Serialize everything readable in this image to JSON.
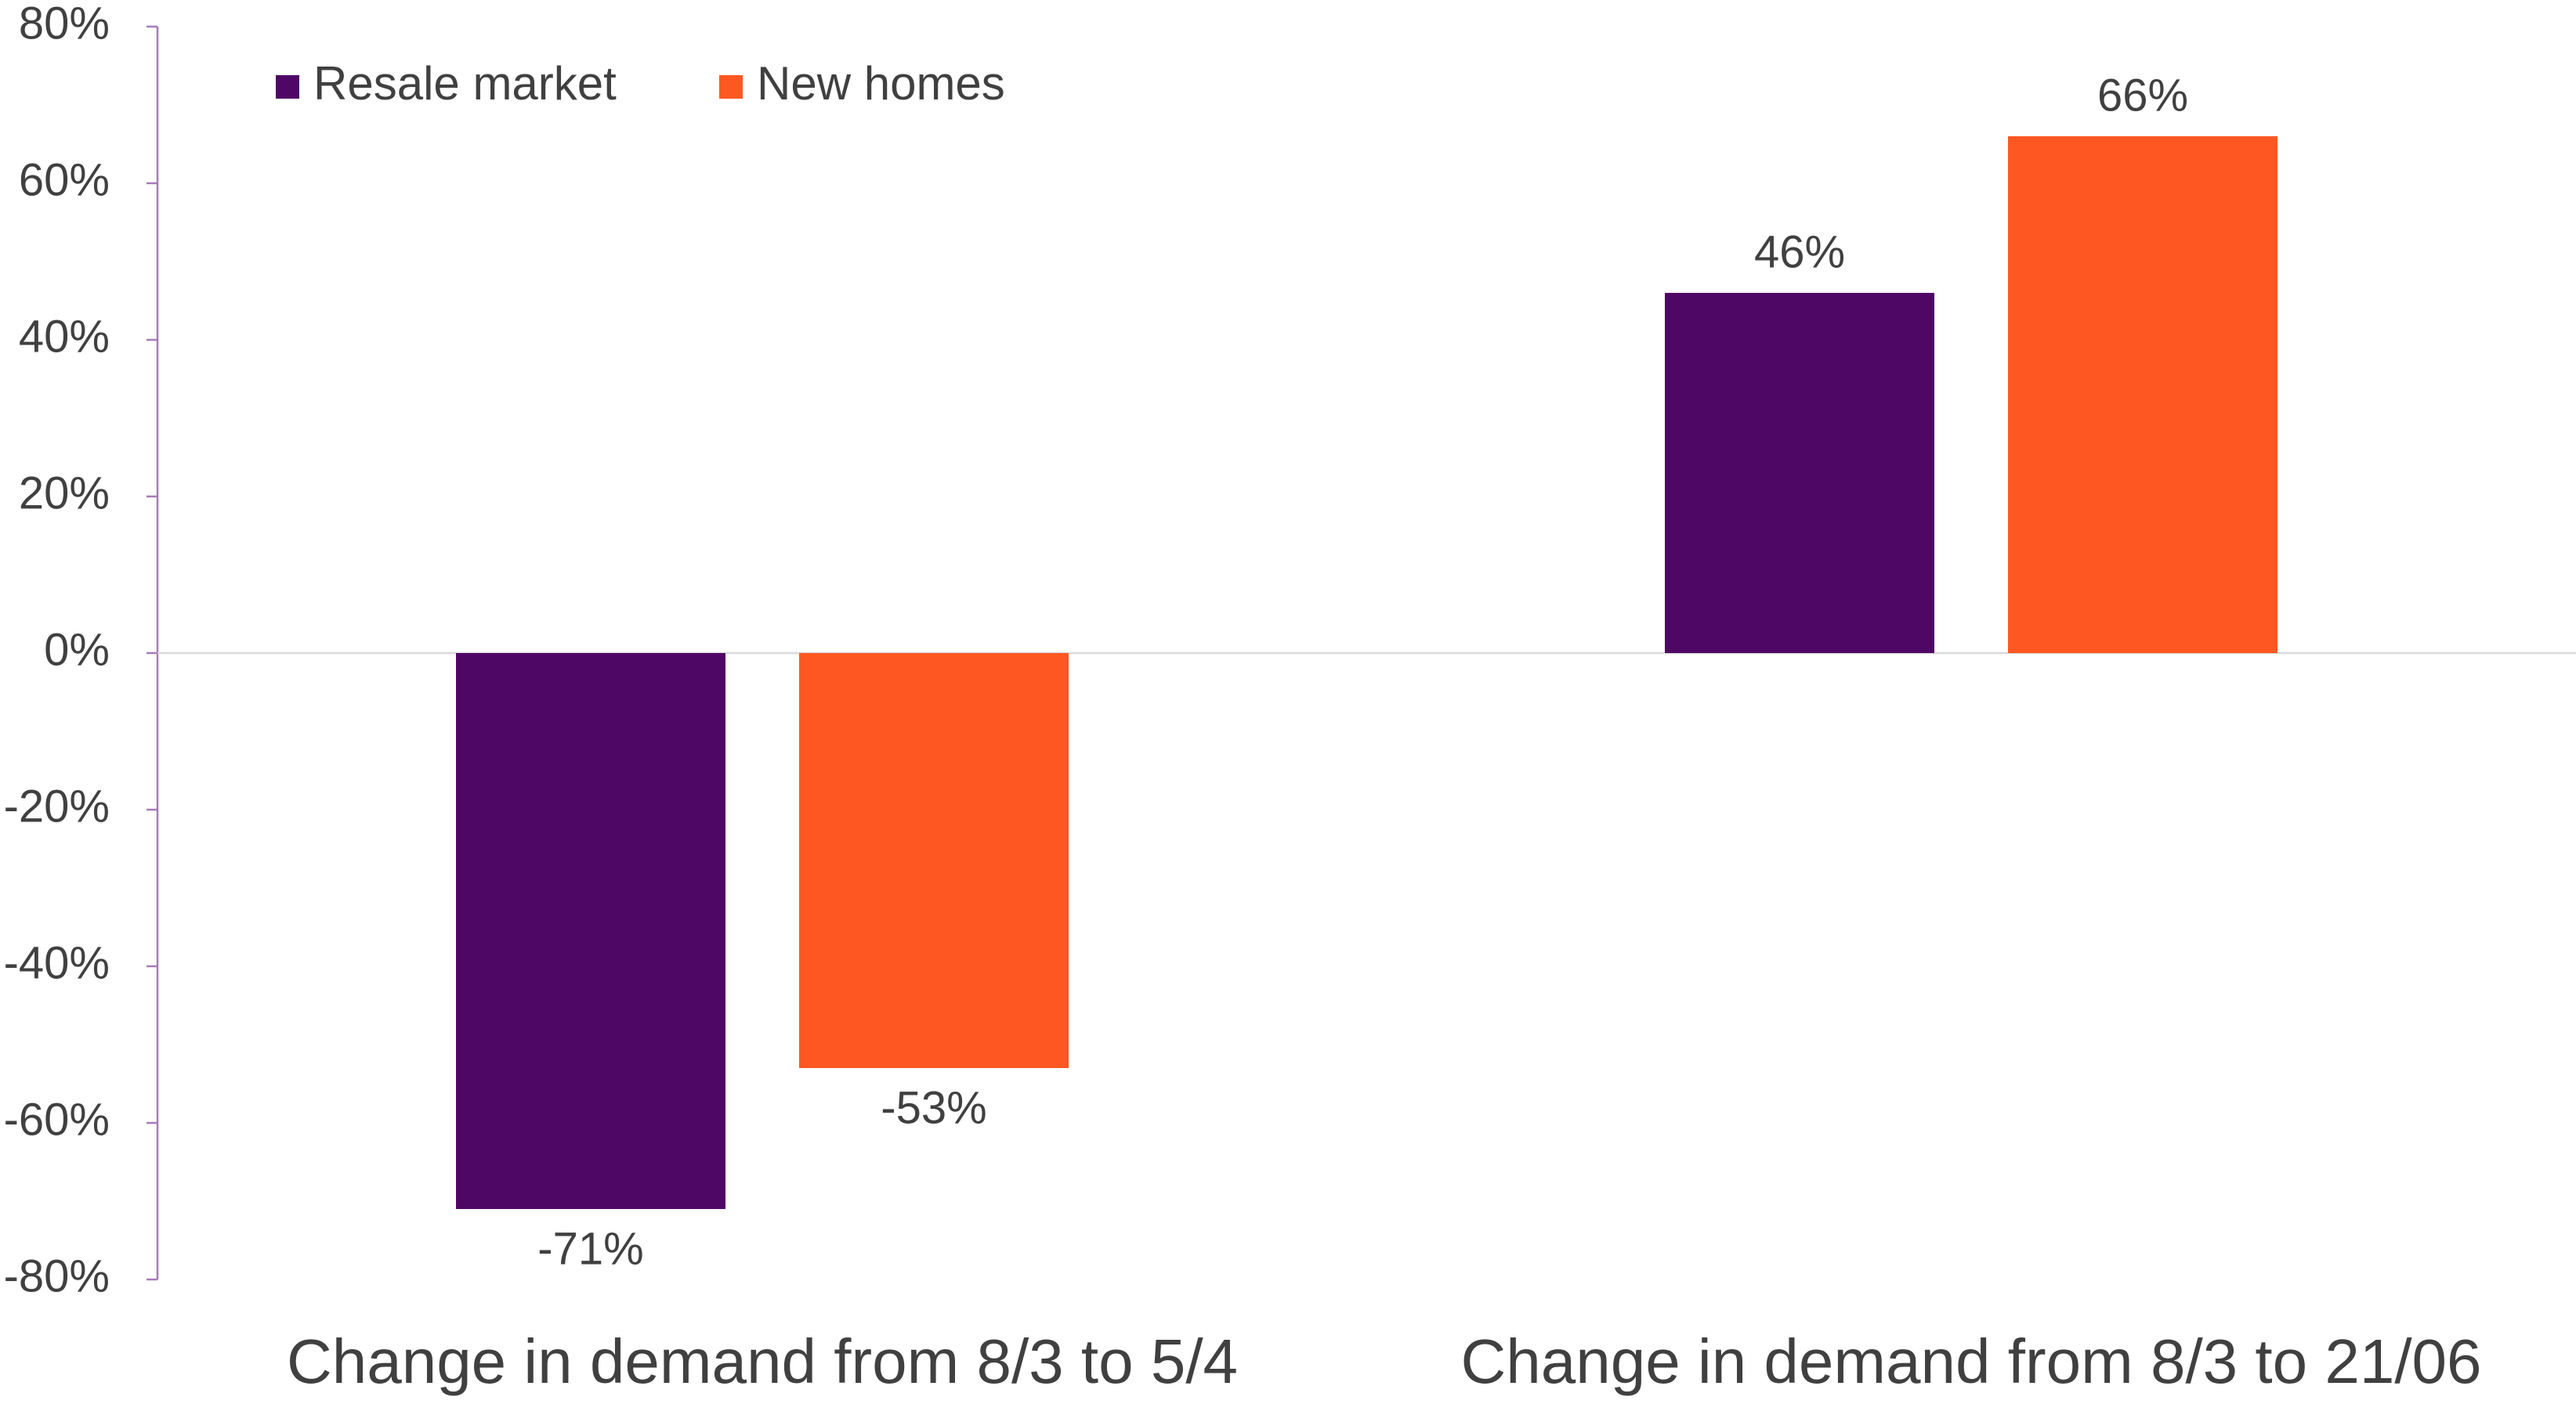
{
  "chart_data": {
    "type": "bar",
    "categories": [
      "Change in demand from 8/3 to 5/4",
      "Change in demand from 8/3 to 21/06"
    ],
    "series": [
      {
        "name": "Resale market",
        "color": "#4f0766",
        "values": [
          -71,
          46
        ],
        "value_labels": [
          "-71%",
          "46%"
        ]
      },
      {
        "name": "New homes",
        "color": "#ff5722",
        "values": [
          -53,
          66
        ],
        "value_labels": [
          "-53%",
          "66%"
        ]
      }
    ],
    "ylim": [
      -80,
      80
    ],
    "yticks": [
      {
        "value": -80,
        "label": "-80%"
      },
      {
        "value": -60,
        "label": "-60%"
      },
      {
        "value": -40,
        "label": "-40%"
      },
      {
        "value": -20,
        "label": "-20%"
      },
      {
        "value": 0,
        "label": "0%"
      },
      {
        "value": 20,
        "label": "20%"
      },
      {
        "value": 40,
        "label": "40%"
      },
      {
        "value": 60,
        "label": "60%"
      },
      {
        "value": 80,
        "label": "80%"
      }
    ],
    "legend": "top-left"
  }
}
